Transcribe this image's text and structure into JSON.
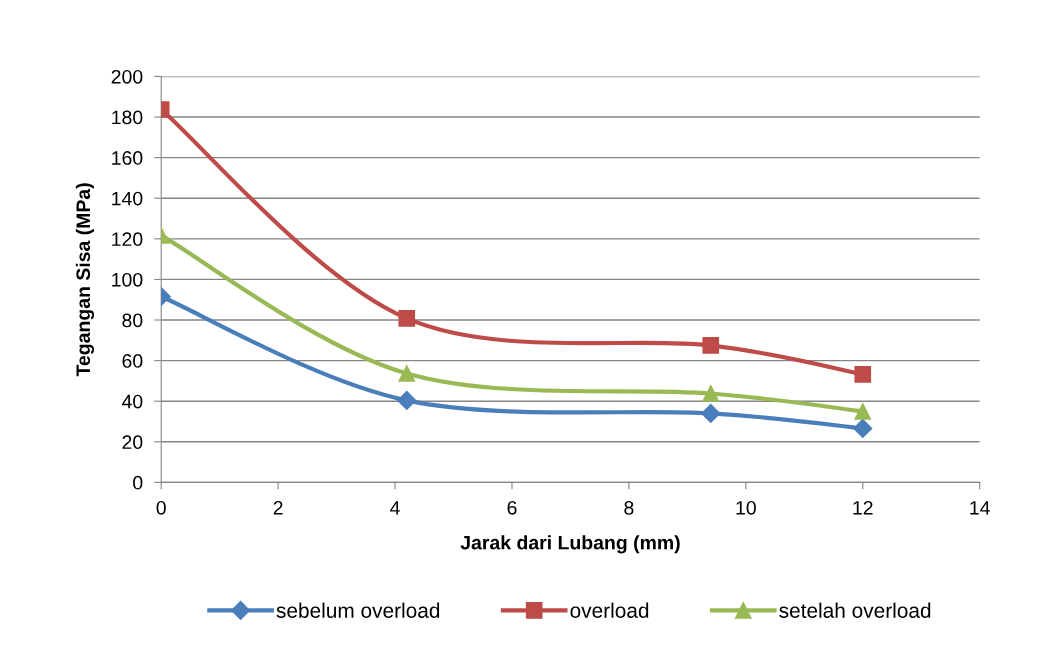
{
  "chart_data": {
    "type": "line",
    "xlabel": "Jarak dari Lubang (mm)",
    "ylabel": "Tegangan Sisa (MPa)",
    "x": [
      0,
      4.2,
      9.4,
      12
    ],
    "series": [
      {
        "name": "sebelum overload",
        "color": "#4a7ebb",
        "marker": "diamond",
        "values": [
          91.6,
          40.4,
          34,
          26.6
        ]
      },
      {
        "name": "overload",
        "color": "#be4b48",
        "marker": "square",
        "values": [
          183.7,
          80.8,
          67.5,
          53.2
        ]
      },
      {
        "name": "setelah overload",
        "color": "#98b954",
        "marker": "triangle",
        "values": [
          121.7,
          53.7,
          43.8,
          35
        ]
      }
    ],
    "xlim": [
      0,
      14
    ],
    "xticks": [
      0,
      2,
      4,
      6,
      8,
      10,
      12,
      14
    ],
    "ylim": [
      0,
      200
    ],
    "yticks": [
      0,
      20,
      40,
      60,
      80,
      100,
      120,
      140,
      160,
      180,
      200
    ],
    "grid": "y",
    "legend": "bottom",
    "line_style": "solid"
  }
}
